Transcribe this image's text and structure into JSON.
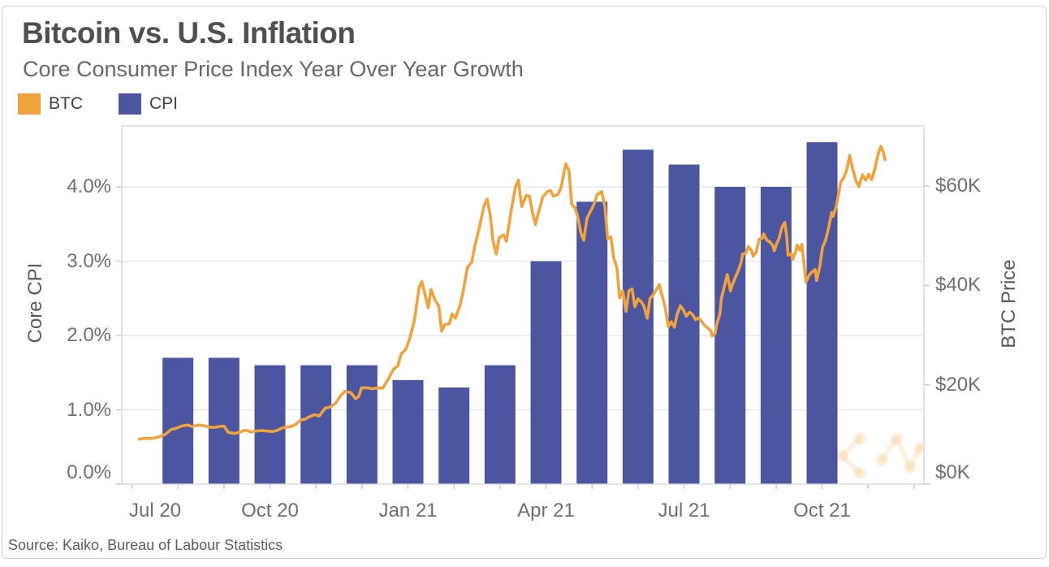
{
  "card": {
    "title": "Bitcoin vs. U.S. Inflation",
    "subtitle": "Core Consumer Price Index Year Over Year Growth",
    "source": "Source: Kaiko, Bureau of Labour Statistics",
    "legend": [
      {
        "label": "BTC",
        "color": "#F0A23C"
      },
      {
        "label": "CPI",
        "color": "#4B55A0"
      }
    ]
  },
  "colors": {
    "btc_line": "#F0A23C",
    "cpi_bar": "#4B55A0",
    "gridline": "#e9e9e9",
    "plot_border": "#d9d9da",
    "tick": "#c8c8ca",
    "watermark": "rgba(243,170,70,0.16)"
  },
  "watermark_icon": "network-nodes-logo-watermark",
  "axes": {
    "left": {
      "title": "Core CPI",
      "labels": [
        "4.0%",
        "3.0%",
        "2.0%",
        "1.0%",
        "0.0%"
      ],
      "values": [
        4,
        3,
        2,
        1,
        0
      ]
    },
    "right": {
      "title": "BTC Price",
      "labels": [
        "$60K",
        "$40K",
        "$20K",
        "$0K"
      ],
      "values": [
        60,
        40,
        20,
        0
      ]
    },
    "x": {
      "labels": [
        "Jul 20",
        "Oct 20",
        "Jan 21",
        "Apr 21",
        "Jul 21",
        "Oct 21"
      ],
      "month_offsets": [
        0,
        3,
        6,
        9,
        12,
        15
      ]
    }
  },
  "chart_data": {
    "type": "combo",
    "title": "Bitcoin vs. U.S. Inflation",
    "subtitle": "Core Consumer Price Index Year Over Year Growth",
    "source": "Source: Kaiko, Bureau of Labour Statistics",
    "grid": "horizontal-only",
    "legend_position": "top-left",
    "left_axis": {
      "label": "Core CPI",
      "unit": "% YoY",
      "ticks": [
        0.0,
        1.0,
        2.0,
        3.0,
        4.0
      ],
      "range": [
        0,
        4.82
      ]
    },
    "right_axis": {
      "label": "BTC Price",
      "unit": "$K",
      "ticks": [
        0,
        20,
        40,
        60
      ],
      "range": [
        0,
        72.1
      ]
    },
    "x_axis": {
      "tick_labels": [
        "Jul 20",
        "Oct 20",
        "Jan 21",
        "Apr 21",
        "Jul 21",
        "Oct 21"
      ],
      "span": "Jun 2020 - Dec 2021"
    },
    "series": [
      {
        "name": "CPI",
        "type": "bar",
        "axis": "left",
        "unit": "% YoY",
        "categories": [
          "Aug 20",
          "Sep 20",
          "Oct 20",
          "Nov 20",
          "Dec 20",
          "Jan 21",
          "Feb 21",
          "Mar 21",
          "Apr 21",
          "May 21",
          "Jun 21",
          "Jul 21",
          "Aug 21",
          "Sep 21",
          "Oct 21"
        ],
        "values": [
          1.7,
          1.7,
          1.6,
          1.6,
          1.6,
          1.4,
          1.3,
          1.6,
          3.0,
          3.8,
          4.5,
          4.3,
          4.0,
          4.0,
          4.6
        ]
      },
      {
        "name": "BTC",
        "type": "line",
        "axis": "right",
        "unit": "$K (USD thousands)",
        "x_unit": "months after 2020-07-01",
        "points": [
          [
            0.16,
            9.1
          ],
          [
            0.3,
            9.2
          ],
          [
            0.44,
            9.2
          ],
          [
            0.58,
            9.5
          ],
          [
            0.72,
            10.0
          ],
          [
            0.85,
            11.0
          ],
          [
            0.95,
            11.2
          ],
          [
            1.08,
            11.7
          ],
          [
            1.21,
            11.9
          ],
          [
            1.31,
            11.6
          ],
          [
            1.44,
            11.9
          ],
          [
            1.54,
            11.8
          ],
          [
            1.67,
            11.5
          ],
          [
            1.77,
            11.4
          ],
          [
            1.9,
            11.6
          ],
          [
            2.0,
            11.7
          ],
          [
            2.1,
            10.4
          ],
          [
            2.23,
            10.2
          ],
          [
            2.36,
            10.5
          ],
          [
            2.46,
            10.9
          ],
          [
            2.59,
            10.5
          ],
          [
            2.69,
            10.7
          ],
          [
            2.82,
            10.8
          ],
          [
            2.92,
            10.7
          ],
          [
            3.05,
            10.6
          ],
          [
            3.15,
            10.8
          ],
          [
            3.28,
            11.4
          ],
          [
            3.41,
            11.5
          ],
          [
            3.54,
            11.9
          ],
          [
            3.67,
            12.9
          ],
          [
            3.77,
            13.1
          ],
          [
            3.84,
            13.5
          ],
          [
            3.97,
            14.0
          ],
          [
            4.07,
            13.7
          ],
          [
            4.2,
            15.3
          ],
          [
            4.3,
            15.5
          ],
          [
            4.43,
            16.3
          ],
          [
            4.53,
            17.8
          ],
          [
            4.63,
            18.7
          ],
          [
            4.76,
            18.4
          ],
          [
            4.86,
            17.2
          ],
          [
            4.93,
            17.7
          ],
          [
            4.99,
            19.4
          ],
          [
            5.12,
            19.4
          ],
          [
            5.22,
            19.2
          ],
          [
            5.35,
            19.4
          ],
          [
            5.45,
            19.3
          ],
          [
            5.58,
            21.3
          ],
          [
            5.68,
            23.1
          ],
          [
            5.78,
            23.8
          ],
          [
            5.85,
            26.2
          ],
          [
            5.95,
            27.1
          ],
          [
            6.04,
            29.4
          ],
          [
            6.14,
            33.0
          ],
          [
            6.24,
            39.5
          ],
          [
            6.3,
            40.8
          ],
          [
            6.37,
            38.2
          ],
          [
            6.44,
            35.5
          ],
          [
            6.5,
            39.2
          ],
          [
            6.6,
            36.8
          ],
          [
            6.67,
            35.9
          ],
          [
            6.73,
            30.8
          ],
          [
            6.8,
            32.1
          ],
          [
            6.9,
            32.3
          ],
          [
            6.96,
            34.3
          ],
          [
            7.03,
            33.4
          ],
          [
            7.13,
            36.0
          ],
          [
            7.19,
            38.3
          ],
          [
            7.29,
            43.6
          ],
          [
            7.39,
            44.8
          ],
          [
            7.45,
            47.9
          ],
          [
            7.55,
            51.6
          ],
          [
            7.65,
            55.9
          ],
          [
            7.72,
            57.4
          ],
          [
            7.79,
            54.1
          ],
          [
            7.85,
            48.9
          ],
          [
            7.92,
            46.3
          ],
          [
            7.98,
            49.6
          ],
          [
            8.08,
            50.2
          ],
          [
            8.14,
            48.9
          ],
          [
            8.24,
            54.9
          ],
          [
            8.34,
            60.0
          ],
          [
            8.4,
            61.2
          ],
          [
            8.47,
            55.9
          ],
          [
            8.57,
            58.1
          ],
          [
            8.64,
            58.0
          ],
          [
            8.72,
            54.1
          ],
          [
            8.77,
            52.3
          ],
          [
            8.87,
            55.8
          ],
          [
            8.93,
            57.8
          ],
          [
            9.03,
            58.9
          ],
          [
            9.1,
            59.1
          ],
          [
            9.16,
            58.0
          ],
          [
            9.26,
            58.3
          ],
          [
            9.33,
            59.8
          ],
          [
            9.4,
            63.2
          ],
          [
            9.43,
            64.5
          ],
          [
            9.5,
            63.1
          ],
          [
            9.56,
            56.3
          ],
          [
            9.63,
            55.7
          ],
          [
            9.69,
            53.8
          ],
          [
            9.76,
            50.5
          ],
          [
            9.82,
            49.1
          ],
          [
            9.89,
            53.5
          ],
          [
            9.95,
            54.6
          ],
          [
            10.05,
            56.5
          ],
          [
            10.11,
            58.3
          ],
          [
            10.21,
            58.9
          ],
          [
            10.28,
            55.9
          ],
          [
            10.34,
            49.4
          ],
          [
            10.41,
            49.8
          ],
          [
            10.47,
            45.6
          ],
          [
            10.54,
            43.5
          ],
          [
            10.6,
            37.5
          ],
          [
            10.67,
            38.9
          ],
          [
            10.74,
            34.8
          ],
          [
            10.8,
            38.9
          ],
          [
            10.87,
            39.3
          ],
          [
            10.93,
            35.7
          ],
          [
            11.0,
            37.3
          ],
          [
            11.07,
            36.7
          ],
          [
            11.13,
            35.8
          ],
          [
            11.2,
            33.4
          ],
          [
            11.26,
            37.4
          ],
          [
            11.33,
            38.1
          ],
          [
            11.39,
            39.0
          ],
          [
            11.46,
            40.2
          ],
          [
            11.52,
            38.1
          ],
          [
            11.59,
            35.6
          ],
          [
            11.66,
            31.7
          ],
          [
            11.72,
            32.7
          ],
          [
            11.79,
            31.6
          ],
          [
            11.85,
            34.2
          ],
          [
            11.92,
            35.9
          ],
          [
            11.99,
            35.0
          ],
          [
            12.05,
            33.8
          ],
          [
            12.12,
            34.6
          ],
          [
            12.18,
            34.2
          ],
          [
            12.25,
            33.1
          ],
          [
            12.31,
            33.5
          ],
          [
            12.38,
            32.8
          ],
          [
            12.45,
            31.9
          ],
          [
            12.51,
            31.5
          ],
          [
            12.58,
            30.9
          ],
          [
            12.61,
            29.8
          ],
          [
            12.68,
            30.4
          ],
          [
            12.71,
            32.1
          ],
          [
            12.78,
            34.3
          ],
          [
            12.81,
            37.3
          ],
          [
            12.88,
            40.0
          ],
          [
            12.94,
            42.2
          ],
          [
            13.01,
            38.9
          ],
          [
            13.04,
            39.9
          ],
          [
            13.11,
            41.5
          ],
          [
            13.17,
            42.8
          ],
          [
            13.24,
            44.6
          ],
          [
            13.27,
            46.3
          ],
          [
            13.34,
            46.5
          ],
          [
            13.4,
            47.8
          ],
          [
            13.47,
            47.0
          ],
          [
            13.5,
            45.9
          ],
          [
            13.57,
            46.7
          ],
          [
            13.63,
            49.3
          ],
          [
            13.7,
            49.5
          ],
          [
            13.73,
            50.4
          ],
          [
            13.8,
            49.1
          ],
          [
            13.86,
            48.8
          ],
          [
            13.93,
            48.0
          ],
          [
            13.96,
            47.0
          ],
          [
            14.03,
            48.8
          ],
          [
            14.06,
            49.3
          ],
          [
            14.13,
            51.8
          ],
          [
            14.19,
            52.7
          ],
          [
            14.23,
            50.0
          ],
          [
            14.26,
            46.1
          ],
          [
            14.33,
            46.4
          ],
          [
            14.36,
            45.2
          ],
          [
            14.43,
            46.9
          ],
          [
            14.46,
            48.1
          ],
          [
            14.52,
            47.1
          ],
          [
            14.56,
            48.3
          ],
          [
            14.62,
            43.2
          ],
          [
            14.65,
            40.7
          ],
          [
            14.72,
            42.1
          ],
          [
            14.78,
            42.7
          ],
          [
            14.85,
            43.2
          ],
          [
            14.88,
            41.0
          ],
          [
            14.95,
            43.8
          ],
          [
            15.01,
            47.7
          ],
          [
            15.08,
            49.2
          ],
          [
            15.14,
            51.5
          ],
          [
            15.21,
            54.7
          ],
          [
            15.24,
            53.9
          ],
          [
            15.31,
            56.0
          ],
          [
            15.34,
            57.5
          ],
          [
            15.41,
            60.9
          ],
          [
            15.47,
            61.6
          ],
          [
            15.54,
            63.4
          ],
          [
            15.6,
            66.2
          ],
          [
            15.67,
            63.3
          ],
          [
            15.74,
            61.0
          ],
          [
            15.8,
            59.9
          ],
          [
            15.88,
            62.3
          ],
          [
            15.95,
            61.2
          ],
          [
            16.02,
            62.4
          ],
          [
            16.08,
            61.3
          ],
          [
            16.15,
            63.6
          ],
          [
            16.22,
            66.5
          ],
          [
            16.28,
            68.0
          ],
          [
            16.33,
            66.8
          ],
          [
            16.37,
            65.3
          ]
        ]
      }
    ]
  }
}
